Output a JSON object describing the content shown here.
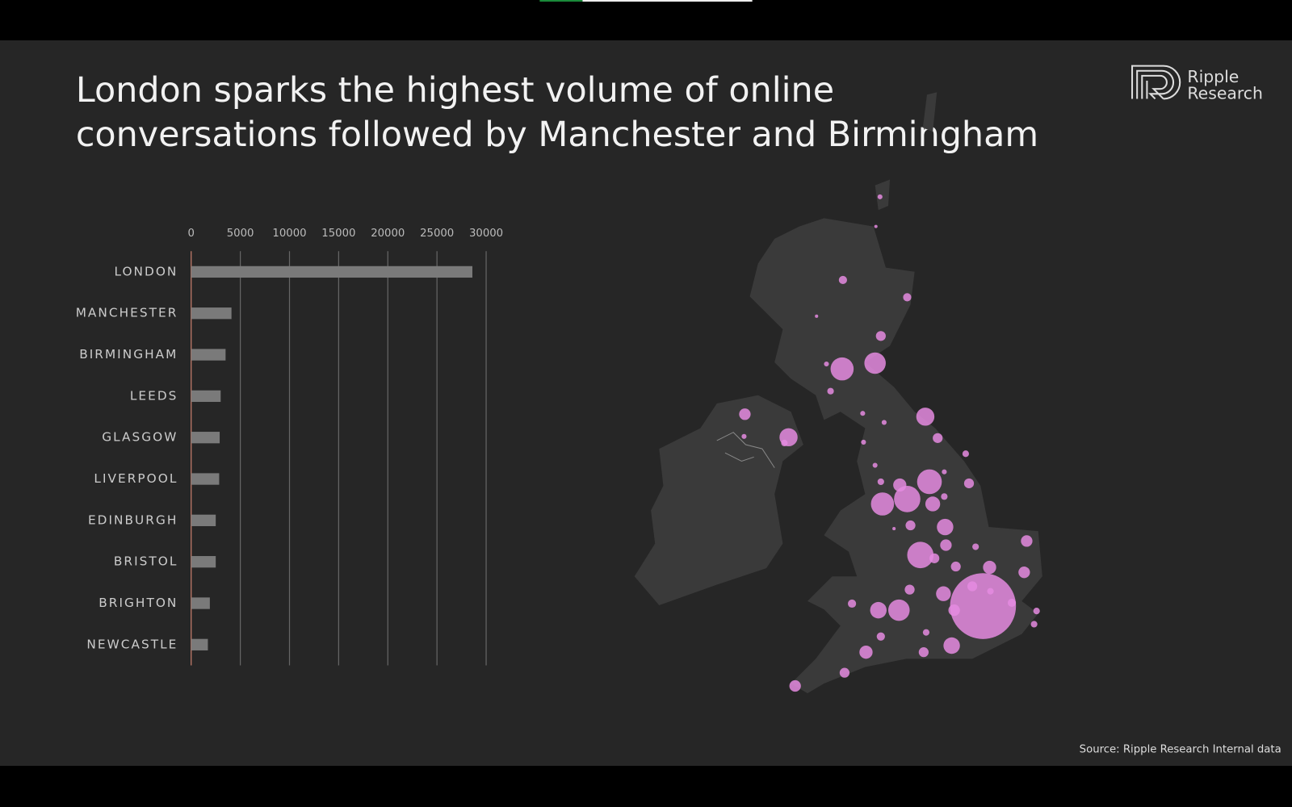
{
  "title_lines": [
    "London sparks the highest volume of online",
    "conversations followed by Manchester and Birmingham"
  ],
  "brand": [
    "Ripple",
    "Research"
  ],
  "source": "Source: Ripple Research Internal data",
  "chart_data": {
    "type": "barh",
    "categories": [
      "LONDON",
      "MANCHESTER",
      "BIRMINGHAM",
      "LEEDS",
      "GLASGOW",
      "LIVERPOOL",
      "EDINBURGH",
      "BRISTOL",
      "BRIGHTON",
      "NEWCASTLE"
    ],
    "values": [
      28600,
      4100,
      3500,
      3000,
      2900,
      2850,
      2500,
      2500,
      1900,
      1700
    ],
    "color": "#7a7a7a",
    "xlim": [
      0,
      30000
    ],
    "xticks": [
      0,
      5000,
      10000,
      15000,
      20000,
      25000,
      30000
    ],
    "grid": true
  }
}
